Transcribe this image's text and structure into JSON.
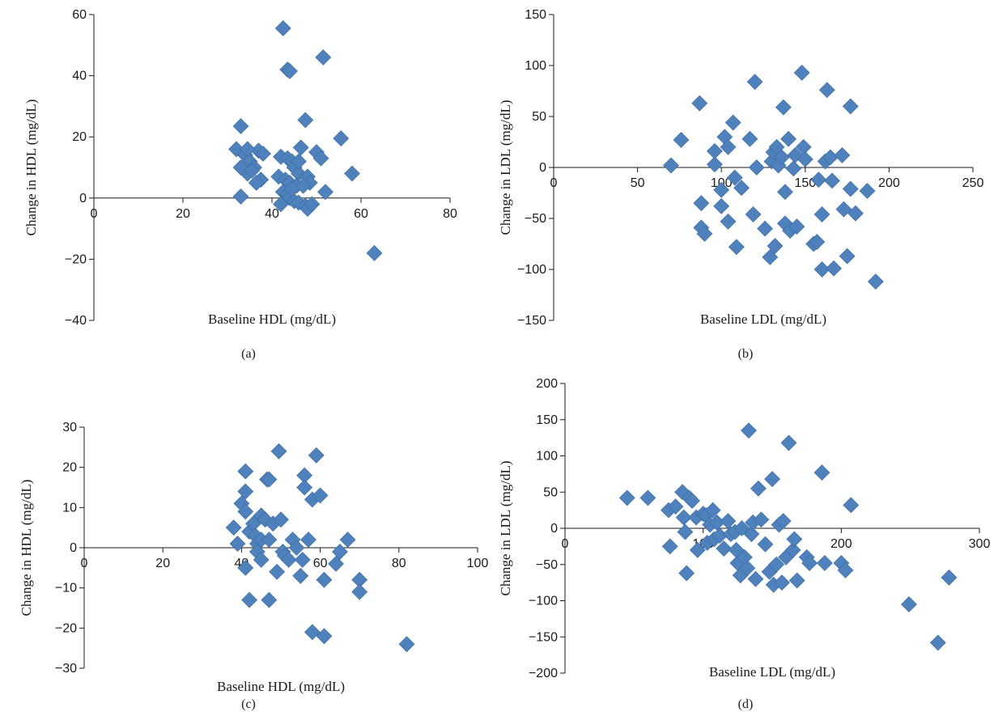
{
  "marker_color": "#4f81bd",
  "marker_stroke": "#3a6a9e",
  "chart_data": [
    {
      "panel": "(a)",
      "type": "scatter",
      "xlabel": "Baseline HDL (mg/dL)",
      "ylabel": "Change in HDL (mg/dL)",
      "xlim": [
        0,
        80
      ],
      "ylim": [
        -40,
        60
      ],
      "xticks": [
        0,
        20,
        40,
        60,
        80
      ],
      "yticks": [
        -40,
        -20,
        0,
        20,
        40,
        60
      ],
      "x_tick_labels": [
        "0",
        "20",
        "40",
        "60",
        "80"
      ],
      "y_tick_labels": [
        "−40",
        "−20",
        "0",
        "20",
        "40",
        "60"
      ],
      "grid": false,
      "points": [
        [
          42.5,
          55.5
        ],
        [
          43.5,
          42
        ],
        [
          44,
          41.5
        ],
        [
          51.5,
          46
        ],
        [
          33,
          23.5
        ],
        [
          32,
          16
        ],
        [
          34,
          14
        ],
        [
          35,
          12
        ],
        [
          36,
          10
        ],
        [
          34.5,
          8
        ],
        [
          37,
          15.5
        ],
        [
          38,
          14.5
        ],
        [
          37.5,
          6
        ],
        [
          36.5,
          5
        ],
        [
          33,
          10
        ],
        [
          35.5,
          9
        ],
        [
          33,
          0.5
        ],
        [
          34.5,
          16
        ],
        [
          42,
          13.5
        ],
        [
          43.5,
          13
        ],
        [
          44.5,
          12
        ],
        [
          45,
          10
        ],
        [
          46,
          8
        ],
        [
          41.5,
          7
        ],
        [
          43,
          6
        ],
        [
          44,
          5
        ],
        [
          45.5,
          4
        ],
        [
          42.5,
          2
        ],
        [
          43.5,
          1
        ],
        [
          44,
          0
        ],
        [
          45,
          -1
        ],
        [
          42,
          -2
        ],
        [
          46,
          -1.5
        ],
        [
          47.5,
          -2.5
        ],
        [
          48,
          -3.5
        ],
        [
          49,
          -2
        ],
        [
          44.5,
          3
        ],
        [
          46.5,
          16.5
        ],
        [
          47.5,
          25.5
        ],
        [
          48,
          7
        ],
        [
          48.5,
          5
        ],
        [
          47,
          4
        ],
        [
          46,
          12
        ],
        [
          50,
          15
        ],
        [
          51,
          13
        ],
        [
          52,
          2
        ],
        [
          55.5,
          19.5
        ],
        [
          58,
          8
        ],
        [
          63,
          -18
        ]
      ]
    },
    {
      "panel": "(b)",
      "type": "scatter",
      "xlabel": "Baseline LDL (mg/dL)",
      "ylabel": "Change in LDL (mg/dL)",
      "xlim": [
        0,
        250
      ],
      "ylim": [
        -150,
        150
      ],
      "xticks": [
        0,
        50,
        100,
        150,
        200,
        250
      ],
      "yticks": [
        -150,
        -100,
        -50,
        0,
        50,
        100,
        150
      ],
      "x_tick_labels": [
        "0",
        "50",
        "100",
        "150",
        "200",
        "250"
      ],
      "y_tick_labels": [
        "−150",
        "−100",
        "−50",
        "0",
        "50",
        "100",
        "150"
      ],
      "grid": false,
      "points": [
        [
          70,
          2
        ],
        [
          76,
          27
        ],
        [
          87,
          63
        ],
        [
          88,
          -35
        ],
        [
          88,
          -59
        ],
        [
          90,
          -65
        ],
        [
          96,
          3
        ],
        [
          96,
          16
        ],
        [
          100,
          -22
        ],
        [
          100,
          -38
        ],
        [
          102,
          30
        ],
        [
          104,
          -53
        ],
        [
          104,
          20
        ],
        [
          107,
          44
        ],
        [
          108,
          -10
        ],
        [
          109,
          -78
        ],
        [
          112,
          -20
        ],
        [
          117,
          28
        ],
        [
          119,
          -46
        ],
        [
          120,
          84
        ],
        [
          121,
          0
        ],
        [
          126,
          -60
        ],
        [
          129,
          -88
        ],
        [
          130,
          6
        ],
        [
          131,
          15
        ],
        [
          132,
          -77
        ],
        [
          133,
          20
        ],
        [
          134,
          2
        ],
        [
          136,
          10
        ],
        [
          137,
          59
        ],
        [
          138,
          -55
        ],
        [
          138,
          -24
        ],
        [
          140,
          28
        ],
        [
          141,
          -62
        ],
        [
          143,
          -1
        ],
        [
          144,
          12
        ],
        [
          145,
          -58
        ],
        [
          148,
          93
        ],
        [
          149,
          20
        ],
        [
          150,
          8
        ],
        [
          155,
          -75
        ],
        [
          157,
          -73
        ],
        [
          158,
          -12
        ],
        [
          160,
          -46
        ],
        [
          160,
          -100
        ],
        [
          162,
          6
        ],
        [
          163,
          76
        ],
        [
          165,
          10
        ],
        [
          166,
          -13
        ],
        [
          167,
          -99
        ],
        [
          172,
          12
        ],
        [
          173,
          -41
        ],
        [
          175,
          -87
        ],
        [
          177,
          60
        ],
        [
          177,
          -21
        ],
        [
          180,
          -45
        ],
        [
          187,
          -23
        ],
        [
          192,
          -112
        ]
      ]
    },
    {
      "panel": "(c)",
      "type": "scatter",
      "xlabel": "Baseline HDL (mg/dL)",
      "ylabel": "Change in HDL (mg/dL)",
      "xlim": [
        0,
        100
      ],
      "ylim": [
        -30,
        30
      ],
      "xticks": [
        0,
        20,
        40,
        60,
        80,
        100
      ],
      "yticks": [
        -30,
        -20,
        -10,
        0,
        10,
        20,
        30
      ],
      "x_tick_labels": [
        "0",
        "20",
        "40",
        "60",
        "80",
        "100"
      ],
      "y_tick_labels": [
        "−30",
        "−20",
        "−10",
        "0",
        "10",
        "20",
        "30"
      ],
      "grid": false,
      "points": [
        [
          38,
          5
        ],
        [
          39,
          1
        ],
        [
          40,
          11
        ],
        [
          41,
          19
        ],
        [
          41,
          14
        ],
        [
          41,
          9
        ],
        [
          42,
          4
        ],
        [
          41,
          -5
        ],
        [
          42,
          -13
        ],
        [
          43,
          6
        ],
        [
          43.5,
          3
        ],
        [
          44,
          1
        ],
        [
          44,
          -1
        ],
        [
          45,
          -3
        ],
        [
          45,
          2
        ],
        [
          45,
          8
        ],
        [
          46,
          7
        ],
        [
          46.5,
          17
        ],
        [
          47,
          17
        ],
        [
          47,
          2
        ],
        [
          47,
          -13
        ],
        [
          48,
          6
        ],
        [
          49,
          -6
        ],
        [
          49.5,
          24
        ],
        [
          50,
          7
        ],
        [
          50.5,
          -1
        ],
        [
          51,
          -2
        ],
        [
          52,
          -3
        ],
        [
          53,
          2
        ],
        [
          54,
          0
        ],
        [
          55,
          -7
        ],
        [
          55.5,
          -3
        ],
        [
          56,
          18
        ],
        [
          56,
          15
        ],
        [
          57,
          2
        ],
        [
          58,
          12
        ],
        [
          58,
          -21
        ],
        [
          59,
          23
        ],
        [
          60,
          13
        ],
        [
          61,
          -8
        ],
        [
          61,
          -22
        ],
        [
          64,
          -4
        ],
        [
          65,
          -1
        ],
        [
          67,
          2
        ],
        [
          70,
          -8
        ],
        [
          70,
          -11
        ],
        [
          82,
          -24
        ]
      ]
    },
    {
      "panel": "(d)",
      "type": "scatter",
      "xlabel": "Baseline LDL (mg/dL)",
      "ylabel": "Change in LDL (mg/dL)",
      "xlim": [
        0,
        300
      ],
      "ylim": [
        -200,
        200
      ],
      "xticks": [
        0,
        100,
        200,
        300
      ],
      "yticks": [
        -200,
        -150,
        -100,
        -50,
        0,
        50,
        100,
        150,
        200
      ],
      "x_tick_labels": [
        "0",
        "100",
        "200",
        "300"
      ],
      "y_tick_labels": [
        "−200",
        "−150",
        "−100",
        "−50",
        "0",
        "50",
        "100",
        "150",
        "200"
      ],
      "grid": false,
      "points": [
        [
          45,
          42
        ],
        [
          60,
          42
        ],
        [
          75,
          25
        ],
        [
          76,
          -25
        ],
        [
          80,
          30
        ],
        [
          85,
          50
        ],
        [
          86,
          15
        ],
        [
          87,
          -5
        ],
        [
          88,
          -62
        ],
        [
          90,
          42
        ],
        [
          92,
          38
        ],
        [
          95,
          15
        ],
        [
          96,
          -30
        ],
        [
          100,
          20
        ],
        [
          102,
          18
        ],
        [
          103,
          -20
        ],
        [
          105,
          5
        ],
        [
          107,
          25
        ],
        [
          108,
          -15
        ],
        [
          110,
          8
        ],
        [
          112,
          -10
        ],
        [
          115,
          -28
        ],
        [
          118,
          10
        ],
        [
          120,
          -8
        ],
        [
          123,
          -5
        ],
        [
          124,
          -30
        ],
        [
          125,
          -48
        ],
        [
          127,
          -65
        ],
        [
          128,
          0
        ],
        [
          130,
          -40
        ],
        [
          132,
          -55
        ],
        [
          133,
          135
        ],
        [
          135,
          -8
        ],
        [
          136,
          8
        ],
        [
          138,
          -70
        ],
        [
          140,
          55
        ],
        [
          142,
          12
        ],
        [
          145,
          -22
        ],
        [
          148,
          -60
        ],
        [
          150,
          68
        ],
        [
          151,
          -78
        ],
        [
          153,
          -50
        ],
        [
          155,
          5
        ],
        [
          157,
          -75
        ],
        [
          158,
          10
        ],
        [
          160,
          -40
        ],
        [
          162,
          118
        ],
        [
          165,
          -30
        ],
        [
          166,
          -15
        ],
        [
          168,
          -72
        ],
        [
          175,
          -40
        ],
        [
          177,
          -48
        ],
        [
          186,
          77
        ],
        [
          188,
          -48
        ],
        [
          200,
          -48
        ],
        [
          203,
          -58
        ],
        [
          207,
          32
        ],
        [
          249,
          -105
        ],
        [
          270,
          -158
        ],
        [
          278,
          -68
        ]
      ]
    }
  ],
  "captions": [
    "(a)",
    "(b)",
    "(c)",
    "(d)"
  ]
}
